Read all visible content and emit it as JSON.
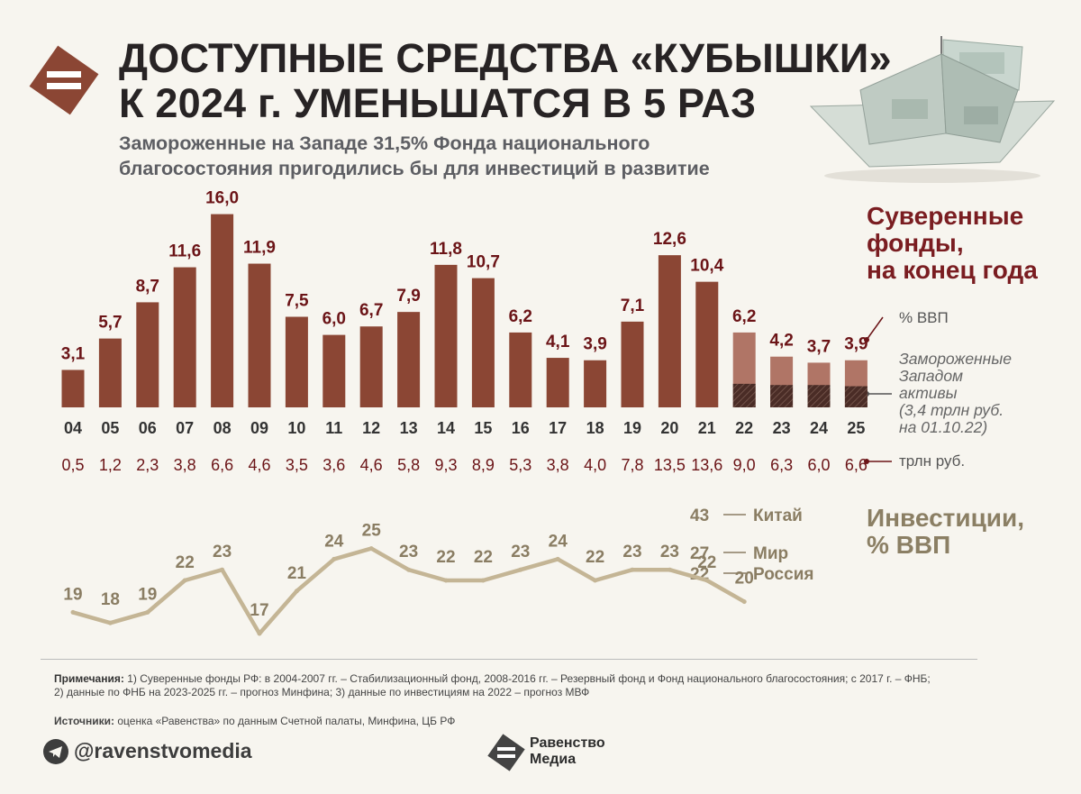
{
  "header": {
    "title_line1": "ДОСТУПНЫЕ СРЕДСТВА «КУБЫШКИ»",
    "title_line2": "К 2024 г. УМЕНЬШАТСЯ В 5 РАЗ",
    "subtitle_line1": "Замороженные на Западе 31,5% Фонда национального",
    "subtitle_line2": "благосостояния пригодились бы для инвестиций в развитие"
  },
  "legend": {
    "funds_title_lines": [
      "Суверенные",
      "фонды,",
      "на конец года"
    ],
    "gdp_label": "% ВВП",
    "frozen_lines": [
      "Замороженные",
      "Западом",
      "активы",
      "(3,4 трлн руб.",
      "на 01.10.22)"
    ],
    "trln_label": "трлн руб.",
    "investment_title_lines": [
      "Инвестиции,",
      "% ВВП"
    ],
    "china_value": "43",
    "china_label": "Китай",
    "world_value": "27",
    "world_label": "Мир",
    "russia_value": "22",
    "russia_label": "Россия"
  },
  "colors": {
    "bar": "#8b4634",
    "bar_forecast": "#b07566",
    "frozen": "#4a2c26",
    "line": "#c4b595",
    "value_label": "#6b1417",
    "line_label": "#8a7d63",
    "title": "#272324",
    "accent": "#7a1d21"
  },
  "chart_data": [
    {
      "type": "bar",
      "title": "Суверенные фонды, на конец года",
      "ylabel": "% ВВП",
      "categories": [
        "04",
        "05",
        "06",
        "07",
        "08",
        "09",
        "10",
        "11",
        "12",
        "13",
        "14",
        "15",
        "16",
        "17",
        "18",
        "19",
        "20",
        "21",
        "22",
        "23",
        "24",
        "25"
      ],
      "series": [
        {
          "name": "% ВВП",
          "values": [
            3.1,
            5.7,
            8.7,
            11.6,
            16.0,
            11.9,
            7.5,
            6.0,
            6.7,
            7.9,
            11.8,
            10.7,
            6.2,
            4.1,
            3.9,
            7.1,
            12.6,
            10.4,
            6.2,
            4.2,
            3.7,
            3.9
          ],
          "labels": [
            "3,1",
            "5,7",
            "8,7",
            "11,6",
            "16,0",
            "11,9",
            "7,5",
            "6,0",
            "6,7",
            "7,9",
            "11,8",
            "10,7",
            "6,2",
            "4,1",
            "3,9",
            "7,1",
            "12,6",
            "10,4",
            "6,2",
            "4,2",
            "3,7",
            "3,9"
          ]
        },
        {
          "name": "Замороженные Западом активы",
          "values": [
            0,
            0,
            0,
            0,
            0,
            0,
            0,
            0,
            0,
            0,
            0,
            0,
            0,
            0,
            0,
            0,
            0,
            0,
            1.95,
            1.85,
            1.85,
            1.75
          ]
        },
        {
          "name": "трлн руб.",
          "values": [
            0.5,
            1.2,
            2.3,
            3.8,
            6.6,
            4.6,
            3.5,
            3.6,
            4.6,
            5.8,
            9.3,
            8.9,
            5.3,
            3.8,
            4.0,
            7.8,
            13.5,
            13.6,
            9.0,
            6.3,
            6.0,
            6.6
          ],
          "labels": [
            "0,5",
            "1,2",
            "2,3",
            "3,8",
            "6,6",
            "4,6",
            "3,5",
            "3,6",
            "4,6",
            "5,8",
            "9,3",
            "8,9",
            "5,3",
            "3,8",
            "4,0",
            "7,8",
            "13,5",
            "13,6",
            "9,0",
            "6,3",
            "6,0",
            "6,6"
          ]
        }
      ],
      "forecast_from": "22",
      "ylim": [
        0,
        16
      ]
    },
    {
      "type": "line",
      "title": "Инвестиции, % ВВП",
      "x": [
        "04",
        "05",
        "06",
        "07",
        "08",
        "09",
        "10",
        "11",
        "12",
        "13",
        "14",
        "15",
        "16",
        "17",
        "18",
        "19",
        "20",
        "21",
        "22"
      ],
      "series": [
        {
          "name": "Россия",
          "values": [
            19,
            18,
            19,
            22,
            23,
            17,
            21,
            24,
            25,
            23,
            22,
            22,
            23,
            24,
            22,
            23,
            23,
            22,
            20
          ]
        }
      ],
      "ylim": [
        17,
        25
      ]
    }
  ],
  "notes": {
    "prefix": "Примечания:",
    "line1": " 1) Суверенные фонды РФ: в 2004-2007 гг. – Стабилизационный фонд, 2008-2016 гг. – Резервный фонд и Фонд национального благосостояния; с 2017 г. – ФНБ;",
    "line2": "2) данные по ФНБ на 2023-2025 гг. – прогноз Минфина; 3) данные по инвестициям на 2022 – прогноз МВФ",
    "sources_prefix": "Источники:",
    "sources": " оценка «Равенства» по данным Счетной палаты, Минфина, ЦБ РФ"
  },
  "footer": {
    "handle": "@ravenstvomedia",
    "brand_line1": "Равенство",
    "brand_line2": "Медиа"
  }
}
